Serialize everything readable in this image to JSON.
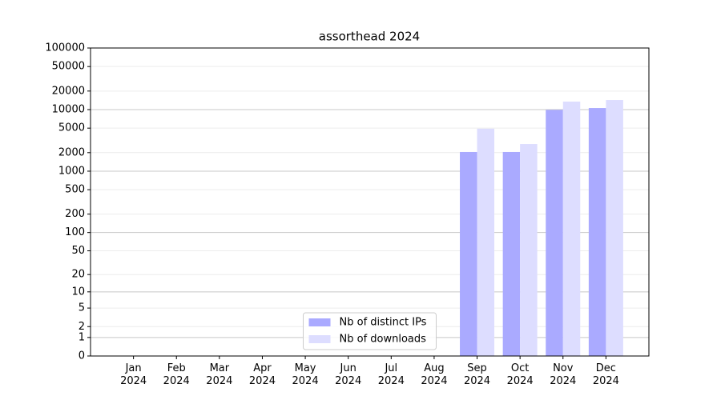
{
  "chart_data": {
    "type": "bar",
    "title": "assorthead 2024",
    "categories": [
      "Jan\n2024",
      "Feb\n2024",
      "Mar\n2024",
      "Apr\n2024",
      "May\n2024",
      "Jun\n2024",
      "Jul\n2024",
      "Aug\n2024",
      "Sep\n2024",
      "Oct\n2024",
      "Nov\n2024",
      "Dec\n2024"
    ],
    "series": [
      {
        "name": "Nb of distinct IPs",
        "color": "#aaaaff",
        "values": [
          0,
          0,
          0,
          0,
          0,
          0,
          0,
          0,
          2050,
          2050,
          9900,
          10600
        ]
      },
      {
        "name": "Nb of downloads",
        "color": "#ddddff",
        "values": [
          0,
          0,
          0,
          0,
          0,
          0,
          0,
          0,
          4900,
          2760,
          13500,
          14300
        ]
      }
    ],
    "y_scale": "log1p",
    "ylim": [
      0,
      100000
    ],
    "yticks": [
      0,
      1,
      2,
      5,
      10,
      20,
      50,
      100,
      200,
      500,
      1000,
      2000,
      5000,
      10000,
      20000,
      50000,
      100000
    ],
    "grid": true,
    "legend": "lower center"
  }
}
